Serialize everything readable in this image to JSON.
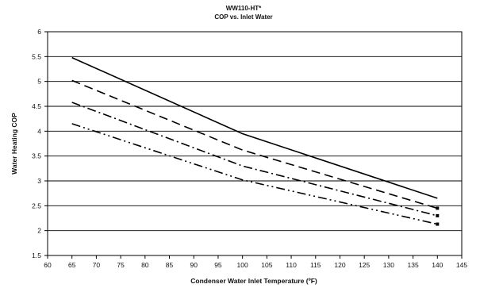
{
  "chart_data": {
    "type": "line",
    "title": "WW110-HT*",
    "subtitle": "COP vs. Inlet Water",
    "xlabel": "Condenser Water Inlet Temperature (ºF)",
    "ylabel": "Water Heating COP",
    "xlim": [
      60,
      145
    ],
    "ylim": [
      1.5,
      6
    ],
    "xticks": [
      "60",
      "65",
      "70",
      "75",
      "80",
      "85",
      "90",
      "95",
      "100",
      "105",
      "110",
      "115",
      "120",
      "125",
      "130",
      "135",
      "140",
      "145"
    ],
    "yticks": [
      "1.5",
      "2",
      "2.5",
      "3",
      "3.5",
      "4",
      "4.5",
      "5",
      "5.5",
      "6"
    ],
    "grid": true,
    "series": [
      {
        "dash": "solid",
        "color": "#000000",
        "x": [
          65,
          100,
          140
        ],
        "y": [
          5.48,
          3.95,
          2.65
        ]
      },
      {
        "dash": "dashed",
        "color": "#000000",
        "x": [
          65,
          100,
          140
        ],
        "y": [
          5.02,
          3.62,
          2.45
        ]
      },
      {
        "dash": "dash-dot",
        "color": "#000000",
        "x": [
          65,
          100,
          140
        ],
        "y": [
          4.58,
          3.3,
          2.3
        ]
      },
      {
        "dash": "dash-dot-dot",
        "color": "#000000",
        "x": [
          65,
          100,
          140
        ],
        "y": [
          4.15,
          3.02,
          2.13
        ]
      }
    ]
  }
}
